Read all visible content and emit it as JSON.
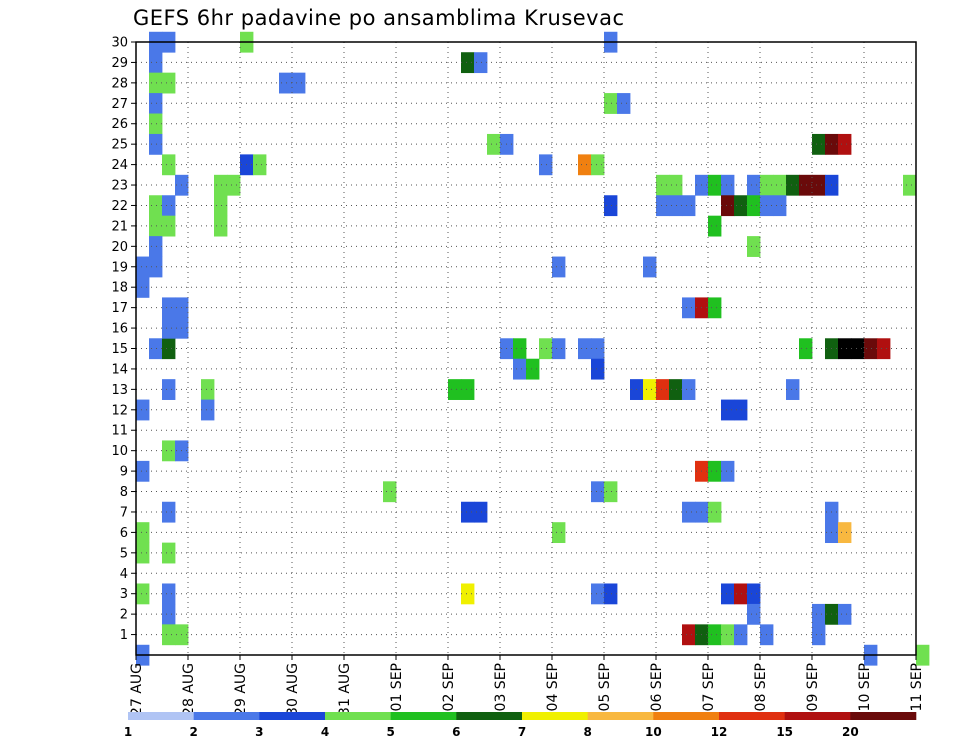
{
  "chart_data": {
    "type": "heatmap",
    "title": "GEFS 6hr padavine po ansamblima Krusevac",
    "x_ticks": [
      "27 AUG",
      "28 AUG",
      "29 AUG",
      "30 AUG",
      "31 AUG",
      "01 SEP",
      "02 SEP",
      "03 SEP",
      "04 SEP",
      "05 SEP",
      "06 SEP",
      "07 SEP",
      "08 SEP",
      "09 SEP",
      "10 SEP",
      "11 SEP"
    ],
    "x_range_days": [
      0,
      15
    ],
    "y_range": [
      0,
      30
    ],
    "y_ticks": [
      1,
      2,
      3,
      4,
      5,
      6,
      7,
      8,
      9,
      10,
      11,
      12,
      13,
      14,
      15,
      16,
      17,
      18,
      19,
      20,
      21,
      22,
      23,
      24,
      25,
      26,
      27,
      28,
      29,
      30
    ],
    "grid": true,
    "legend_placement": "bottom",
    "colorbar": {
      "labels": [
        "1",
        "2",
        "3",
        "4",
        "5",
        "6",
        "7",
        "8",
        "10",
        "12",
        "15",
        "20"
      ],
      "colors": [
        "#b0c4f4",
        "#4a78e8",
        "#1a46d8",
        "#70e050",
        "#20c020",
        "#106010",
        "#f0f000",
        "#f8b840",
        "#f08010",
        "#e03010",
        "#b01010",
        "#6a0a0a"
      ]
    },
    "cells": [
      [
        1,
        30,
        1
      ],
      [
        2,
        30,
        1
      ],
      [
        1,
        29,
        1
      ],
      [
        8,
        30,
        3
      ],
      [
        36,
        30,
        1
      ],
      [
        1,
        28,
        3
      ],
      [
        2,
        28,
        3
      ],
      [
        11,
        28,
        1
      ],
      [
        12,
        28,
        1
      ],
      [
        1,
        27,
        1
      ],
      [
        25,
        29,
        5
      ],
      [
        26,
        29,
        1
      ],
      [
        1,
        26,
        3
      ],
      [
        36,
        27,
        3
      ],
      [
        37,
        27,
        1
      ],
      [
        1,
        25,
        1
      ],
      [
        27,
        25,
        3
      ],
      [
        28,
        25,
        1
      ],
      [
        52,
        25,
        5
      ],
      [
        53,
        25,
        11
      ],
      [
        54,
        25,
        10
      ],
      [
        2,
        24,
        3
      ],
      [
        8,
        24,
        2
      ],
      [
        9,
        24,
        3
      ],
      [
        31,
        24,
        1
      ],
      [
        34,
        24,
        8
      ],
      [
        35,
        24,
        3
      ],
      [
        3,
        23,
        1
      ],
      [
        6,
        23,
        3
      ],
      [
        7,
        23,
        3
      ],
      [
        40,
        23,
        3
      ],
      [
        41,
        23,
        3
      ],
      [
        43,
        23,
        1
      ],
      [
        44,
        23,
        4
      ],
      [
        45,
        23,
        1
      ],
      [
        47,
        23,
        1
      ],
      [
        48,
        23,
        3
      ],
      [
        49,
        23,
        3
      ],
      [
        50,
        23,
        5
      ],
      [
        51,
        23,
        11
      ],
      [
        52,
        23,
        11
      ],
      [
        53,
        23,
        2
      ],
      [
        59,
        23,
        3
      ],
      [
        1,
        22,
        3
      ],
      [
        2,
        22,
        1
      ],
      [
        36,
        22,
        2
      ],
      [
        40,
        22,
        1
      ],
      [
        41,
        22,
        1
      ],
      [
        42,
        22,
        1
      ],
      [
        45,
        22,
        11
      ],
      [
        46,
        22,
        5
      ],
      [
        47,
        22,
        4
      ],
      [
        48,
        22,
        1
      ],
      [
        49,
        22,
        1
      ],
      [
        1,
        21,
        3
      ],
      [
        2,
        21,
        3
      ],
      [
        6,
        21,
        3
      ],
      [
        6,
        22,
        3
      ],
      [
        44,
        21,
        4
      ],
      [
        1,
        20,
        1
      ],
      [
        47,
        20,
        3
      ],
      [
        1,
        19,
        1
      ],
      [
        0,
        19,
        1
      ],
      [
        32,
        19,
        1
      ],
      [
        39,
        19,
        1
      ],
      [
        0,
        18,
        1
      ],
      [
        2,
        17,
        1
      ],
      [
        3,
        17,
        1
      ],
      [
        42,
        17,
        1
      ],
      [
        43,
        17,
        10
      ],
      [
        44,
        17,
        4
      ],
      [
        2,
        16,
        1
      ],
      [
        3,
        16,
        1
      ],
      [
        1,
        15,
        1
      ],
      [
        2,
        15,
        5
      ],
      [
        28,
        15,
        1
      ],
      [
        29,
        15,
        4
      ],
      [
        31,
        15,
        3
      ],
      [
        32,
        15,
        1
      ],
      [
        34,
        15,
        1
      ],
      [
        35,
        15,
        1
      ],
      [
        51,
        15,
        4
      ],
      [
        53,
        15,
        5
      ],
      [
        54,
        15,
        12
      ],
      [
        55,
        15,
        12
      ],
      [
        56,
        15,
        11
      ],
      [
        57,
        15,
        10
      ],
      [
        2,
        16,
        1
      ],
      [
        29,
        14,
        1
      ],
      [
        30,
        14,
        4
      ],
      [
        35,
        14,
        2
      ],
      [
        2,
        13,
        1
      ],
      [
        5,
        13,
        3
      ],
      [
        24,
        13,
        4
      ],
      [
        25,
        13,
        4
      ],
      [
        38,
        13,
        2
      ],
      [
        39,
        13,
        6
      ],
      [
        40,
        13,
        9
      ],
      [
        41,
        13,
        5
      ],
      [
        42,
        13,
        1
      ],
      [
        50,
        13,
        1
      ],
      [
        0,
        12,
        1
      ],
      [
        5,
        12,
        1
      ],
      [
        45,
        12,
        2
      ],
      [
        46,
        12,
        2
      ],
      [
        2,
        10,
        3
      ],
      [
        3,
        10,
        1
      ],
      [
        0,
        9,
        1
      ],
      [
        43,
        9,
        9
      ],
      [
        44,
        9,
        4
      ],
      [
        45,
        9,
        1
      ],
      [
        19,
        8,
        3
      ],
      [
        35,
        8,
        1
      ],
      [
        36,
        8,
        3
      ],
      [
        2,
        7,
        1
      ],
      [
        25,
        7,
        2
      ],
      [
        26,
        7,
        2
      ],
      [
        42,
        7,
        1
      ],
      [
        43,
        7,
        1
      ],
      [
        44,
        7,
        3
      ],
      [
        53,
        7,
        1
      ],
      [
        0,
        6,
        3
      ],
      [
        32,
        6,
        3
      ],
      [
        53,
        6,
        1
      ],
      [
        54,
        6,
        7
      ],
      [
        0,
        5,
        3
      ],
      [
        2,
        5,
        3
      ],
      [
        0,
        3,
        3
      ],
      [
        2,
        3,
        1
      ],
      [
        25,
        3,
        6
      ],
      [
        35,
        3,
        1
      ],
      [
        36,
        3,
        2
      ],
      [
        45,
        3,
        2
      ],
      [
        46,
        3,
        10
      ],
      [
        47,
        3,
        2
      ],
      [
        2,
        2,
        1
      ],
      [
        47,
        2,
        1
      ],
      [
        52,
        2,
        1
      ],
      [
        53,
        2,
        5
      ],
      [
        54,
        2,
        1
      ],
      [
        2,
        1,
        3
      ],
      [
        3,
        1,
        3
      ],
      [
        42,
        1,
        10
      ],
      [
        43,
        1,
        5
      ],
      [
        44,
        1,
        4
      ],
      [
        45,
        1,
        3
      ],
      [
        46,
        1,
        1
      ],
      [
        48,
        1,
        1
      ],
      [
        52,
        1,
        1
      ],
      [
        0,
        0,
        1
      ],
      [
        56,
        0,
        1
      ],
      [
        60,
        0,
        3
      ]
    ]
  }
}
